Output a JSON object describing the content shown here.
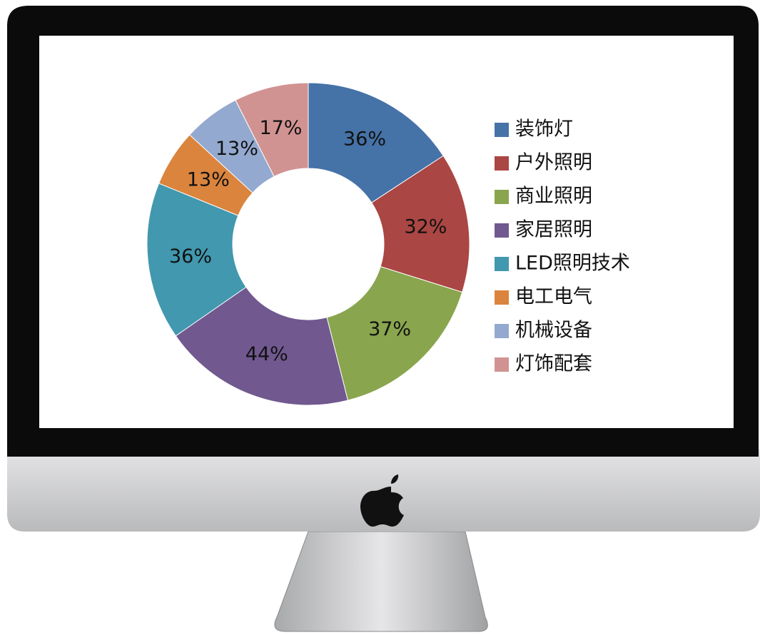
{
  "chart_data": {
    "type": "donut",
    "categories": [
      "装饰灯",
      "户外照明",
      "商业照明",
      "家居照明",
      "LED照明技术",
      "电工电气",
      "机械设备",
      "灯饰配套"
    ],
    "values": [
      36,
      32,
      37,
      44,
      36,
      13,
      13,
      17
    ],
    "value_labels": [
      "36%",
      "32%",
      "37%",
      "44%",
      "36%",
      "13%",
      "13%",
      "17%"
    ],
    "colors": [
      "#4572a7",
      "#aa4643",
      "#89a54e",
      "#71588f",
      "#4198af",
      "#db843d",
      "#93a9cf",
      "#d19392"
    ],
    "legend": "right"
  }
}
